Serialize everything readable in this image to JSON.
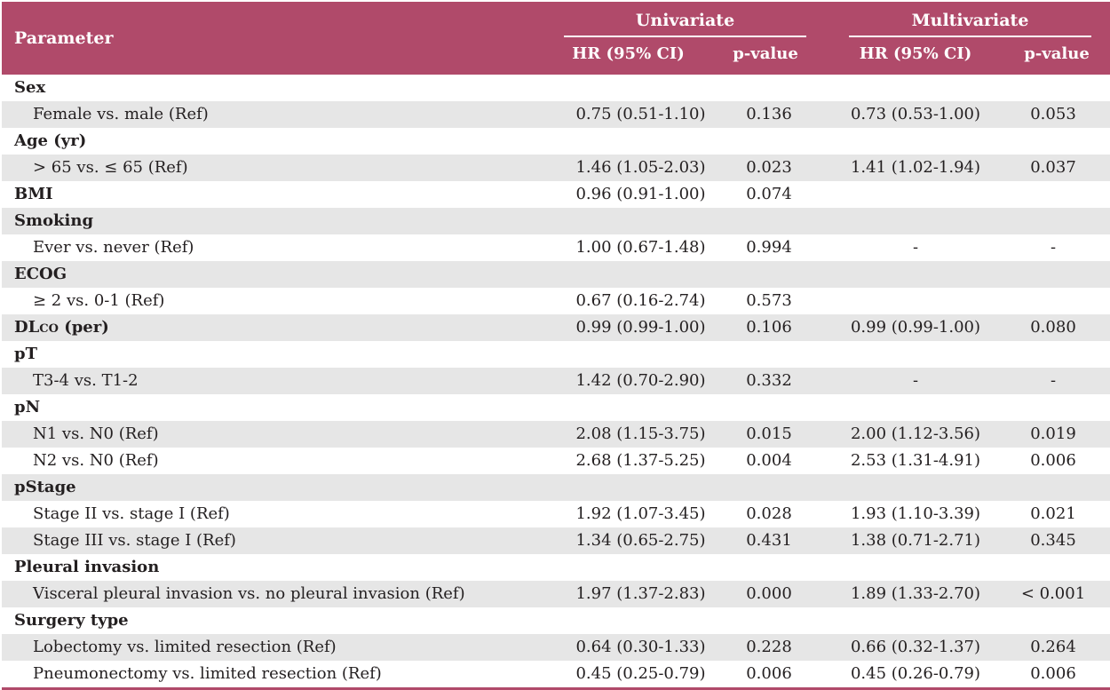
{
  "header": {
    "parameter": "Parameter",
    "univariate": "Univariate",
    "multivariate": "Multivariate",
    "hr": "HR (95% CI)",
    "pvalue": "p-value"
  },
  "rows": [
    {
      "type": "cat",
      "label": "Sex",
      "shade": false
    },
    {
      "type": "item",
      "label": "Female vs. male (Ref)",
      "uhr": "0.75 (0.51-1.10)",
      "up": "0.136",
      "mhr": "0.73 (0.53-1.00)",
      "mp": "0.053",
      "shade": true
    },
    {
      "type": "cat",
      "label": "Age (yr)",
      "shade": false
    },
    {
      "type": "item",
      "label": "> 65 vs. ≤ 65 (Ref)",
      "uhr": "1.46 (1.05-2.03)",
      "up": "0.023",
      "mhr": "1.41 (1.02-1.94)",
      "mp": "0.037",
      "shade": true
    },
    {
      "type": "cat",
      "label": "BMI",
      "uhr": "0.96 (0.91-1.00)",
      "up": "0.074",
      "shade": false
    },
    {
      "type": "cat",
      "label": "Smoking",
      "shade": true
    },
    {
      "type": "item",
      "label": "Ever vs. never (Ref)",
      "uhr": "1.00 (0.67-1.48)",
      "up": "0.994",
      "mhr": "-",
      "mp": "-",
      "shade": false
    },
    {
      "type": "cat",
      "label": "ECOG",
      "shade": true
    },
    {
      "type": "item",
      "label": "≥ 2 vs. 0-1 (Ref)",
      "uhr": "0.67 (0.16-2.74)",
      "up": "0.573",
      "shade": false
    },
    {
      "type": "cat",
      "label": "DL",
      "label_sub": "CO",
      "label_tail": " (per)",
      "uhr": "0.99 (0.99-1.00)",
      "up": "0.106",
      "mhr": "0.99 (0.99-1.00)",
      "mp": "0.080",
      "shade": true
    },
    {
      "type": "cat",
      "label": "pT",
      "shade": false
    },
    {
      "type": "item",
      "label": "T3-4 vs. T1-2",
      "uhr": "1.42 (0.70-2.90)",
      "up": "0.332",
      "mhr": "-",
      "mp": "-",
      "shade": true
    },
    {
      "type": "cat",
      "label": "pN",
      "shade": false
    },
    {
      "type": "item",
      "label": "N1 vs. N0 (Ref)",
      "uhr": "2.08 (1.15-3.75)",
      "up": "0.015",
      "mhr": "2.00 (1.12-3.56)",
      "mp": "0.019",
      "shade": true
    },
    {
      "type": "item",
      "label": "N2 vs. N0 (Ref)",
      "uhr": "2.68 (1.37-5.25)",
      "up": "0.004",
      "mhr": "2.53 (1.31-4.91)",
      "mp": "0.006",
      "shade": false
    },
    {
      "type": "cat",
      "label": "pStage",
      "shade": true
    },
    {
      "type": "item",
      "label": "Stage II vs. stage I (Ref)",
      "uhr": "1.92 (1.07-3.45)",
      "up": "0.028",
      "mhr": "1.93 (1.10-3.39)",
      "mp": "0.021",
      "shade": false
    },
    {
      "type": "item",
      "label": "Stage III vs. stage I (Ref)",
      "uhr": "1.34 (0.65-2.75)",
      "up": "0.431",
      "mhr": "1.38 (0.71-2.71)",
      "mp": "0.345",
      "shade": true
    },
    {
      "type": "cat",
      "label": "Pleural invasion",
      "shade": false
    },
    {
      "type": "item",
      "label": "Visceral pleural invasion vs. no pleural invasion (Ref)",
      "uhr": "1.97 (1.37-2.83)",
      "up": "0.000",
      "mhr": "1.89 (1.33-2.70)",
      "mp": "< 0.001",
      "shade": true
    },
    {
      "type": "cat",
      "label": "Surgery type",
      "shade": false
    },
    {
      "type": "item",
      "label": "Lobectomy vs. limited resection (Ref)",
      "uhr": "0.64 (0.30-1.33)",
      "up": "0.228",
      "mhr": "0.66 (0.32-1.37)",
      "mp": "0.264",
      "shade": true
    },
    {
      "type": "item",
      "label": "Pneumonectomy vs. limited resection (Ref)",
      "uhr": "0.45 (0.25-0.79)",
      "up": "0.006",
      "mhr": "0.45 (0.26-0.79)",
      "mp": "0.006",
      "shade": false
    }
  ]
}
